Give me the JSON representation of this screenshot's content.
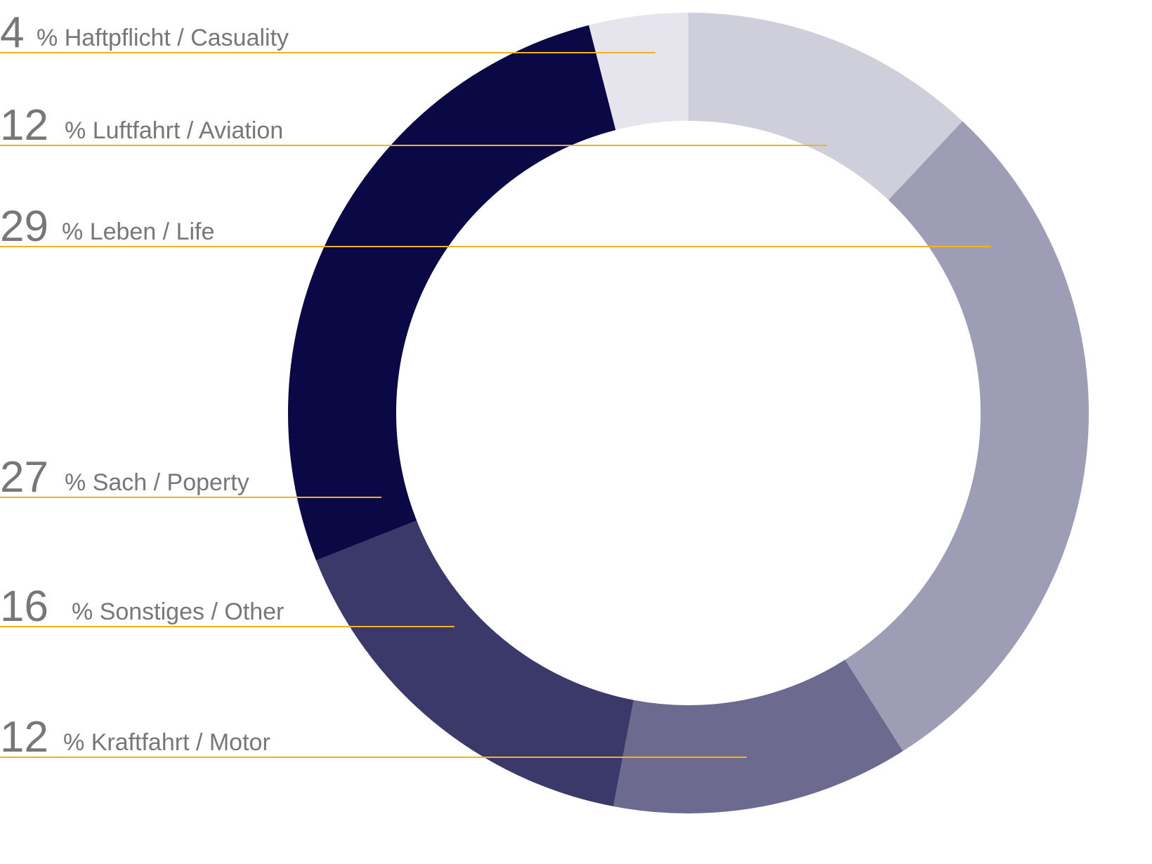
{
  "chart_data": {
    "type": "donut",
    "categories": [
      "Luftfahrt / Aviation",
      "Leben / Life",
      "Kraftfahrt / Motor",
      "Sonstiges / Other",
      "Sach / Poperty",
      "Haftpflicht / Casuality"
    ],
    "values": [
      12,
      29,
      12,
      16,
      27,
      4
    ],
    "unit": "%",
    "colors": [
      "#cfcfdc",
      "#9e9db6",
      "#6c6b8f",
      "#3a396a",
      "#0a0845",
      "#e6e5ee"
    ],
    "leader_color": "#f0b323"
  }
}
